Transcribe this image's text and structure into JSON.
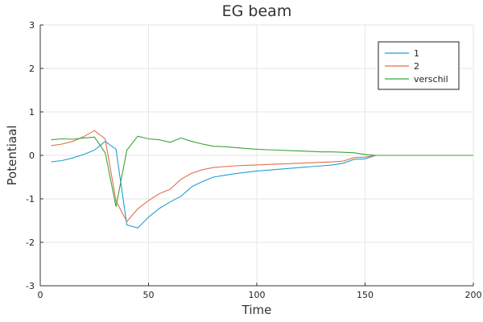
{
  "chart_data": {
    "type": "line",
    "title": "EG beam",
    "xlabel": "Time",
    "ylabel": "Potentiaal",
    "xlim": [
      0,
      200
    ],
    "ylim": [
      -3,
      3
    ],
    "xticks": [
      "0",
      "50",
      "100",
      "150",
      "200"
    ],
    "yticks": [
      "-3",
      "-2",
      "-1",
      "0",
      "1",
      "2",
      "3"
    ],
    "grid": true,
    "legend_position": "top-right",
    "series": [
      {
        "name": "1",
        "color": "#1f9fd8",
        "x": [
          5,
          10,
          15,
          20,
          25,
          30,
          35,
          40,
          45,
          50,
          55,
          60,
          65,
          70,
          75,
          80,
          85,
          90,
          95,
          100,
          105,
          110,
          115,
          120,
          125,
          130,
          135,
          140,
          145,
          150,
          155,
          160,
          165,
          170,
          175,
          180,
          185,
          190,
          195,
          200
        ],
        "y": [
          -0.15,
          -0.12,
          -0.06,
          0.02,
          0.12,
          0.32,
          0.14,
          -1.6,
          -1.67,
          -1.42,
          -1.22,
          -1.07,
          -0.94,
          -0.72,
          -0.6,
          -0.5,
          -0.46,
          -0.42,
          -0.39,
          -0.36,
          -0.34,
          -0.32,
          -0.3,
          -0.28,
          -0.26,
          -0.24,
          -0.22,
          -0.18,
          -0.09,
          -0.08,
          0,
          0,
          0,
          0,
          0,
          0,
          0,
          0,
          0,
          0
        ]
      },
      {
        "name": "2",
        "color": "#e0704a",
        "x": [
          5,
          10,
          15,
          20,
          25,
          30,
          35,
          40,
          45,
          50,
          55,
          60,
          65,
          70,
          75,
          80,
          85,
          90,
          95,
          100,
          105,
          110,
          115,
          120,
          125,
          130,
          135,
          140,
          145,
          150,
          155,
          160,
          165,
          170,
          175,
          180,
          185,
          190,
          195,
          200
        ],
        "y": [
          0.22,
          0.26,
          0.32,
          0.43,
          0.57,
          0.38,
          -1.05,
          -1.52,
          -1.23,
          -1.04,
          -0.88,
          -0.78,
          -0.55,
          -0.41,
          -0.33,
          -0.28,
          -0.26,
          -0.24,
          -0.23,
          -0.22,
          -0.21,
          -0.2,
          -0.19,
          -0.18,
          -0.17,
          -0.16,
          -0.15,
          -0.13,
          -0.05,
          -0.04,
          0,
          0,
          0,
          0,
          0,
          0,
          0,
          0,
          0,
          0
        ]
      },
      {
        "name": "verschil",
        "color": "#3aa33a",
        "x": [
          5,
          10,
          15,
          20,
          25,
          30,
          35,
          40,
          45,
          50,
          55,
          60,
          65,
          70,
          75,
          80,
          85,
          90,
          95,
          100,
          105,
          110,
          115,
          120,
          125,
          130,
          135,
          140,
          145,
          150,
          155,
          160,
          165,
          170,
          175,
          180,
          185,
          190,
          195,
          200
        ],
        "y": [
          0.36,
          0.38,
          0.37,
          0.4,
          0.42,
          0.06,
          -1.18,
          0.12,
          0.44,
          0.38,
          0.36,
          0.3,
          0.4,
          0.32,
          0.26,
          0.21,
          0.2,
          0.18,
          0.16,
          0.14,
          0.13,
          0.12,
          0.11,
          0.1,
          0.09,
          0.08,
          0.08,
          0.07,
          0.06,
          0.02,
          0,
          0,
          0,
          0,
          0,
          0,
          0,
          0,
          0,
          0
        ]
      }
    ]
  }
}
